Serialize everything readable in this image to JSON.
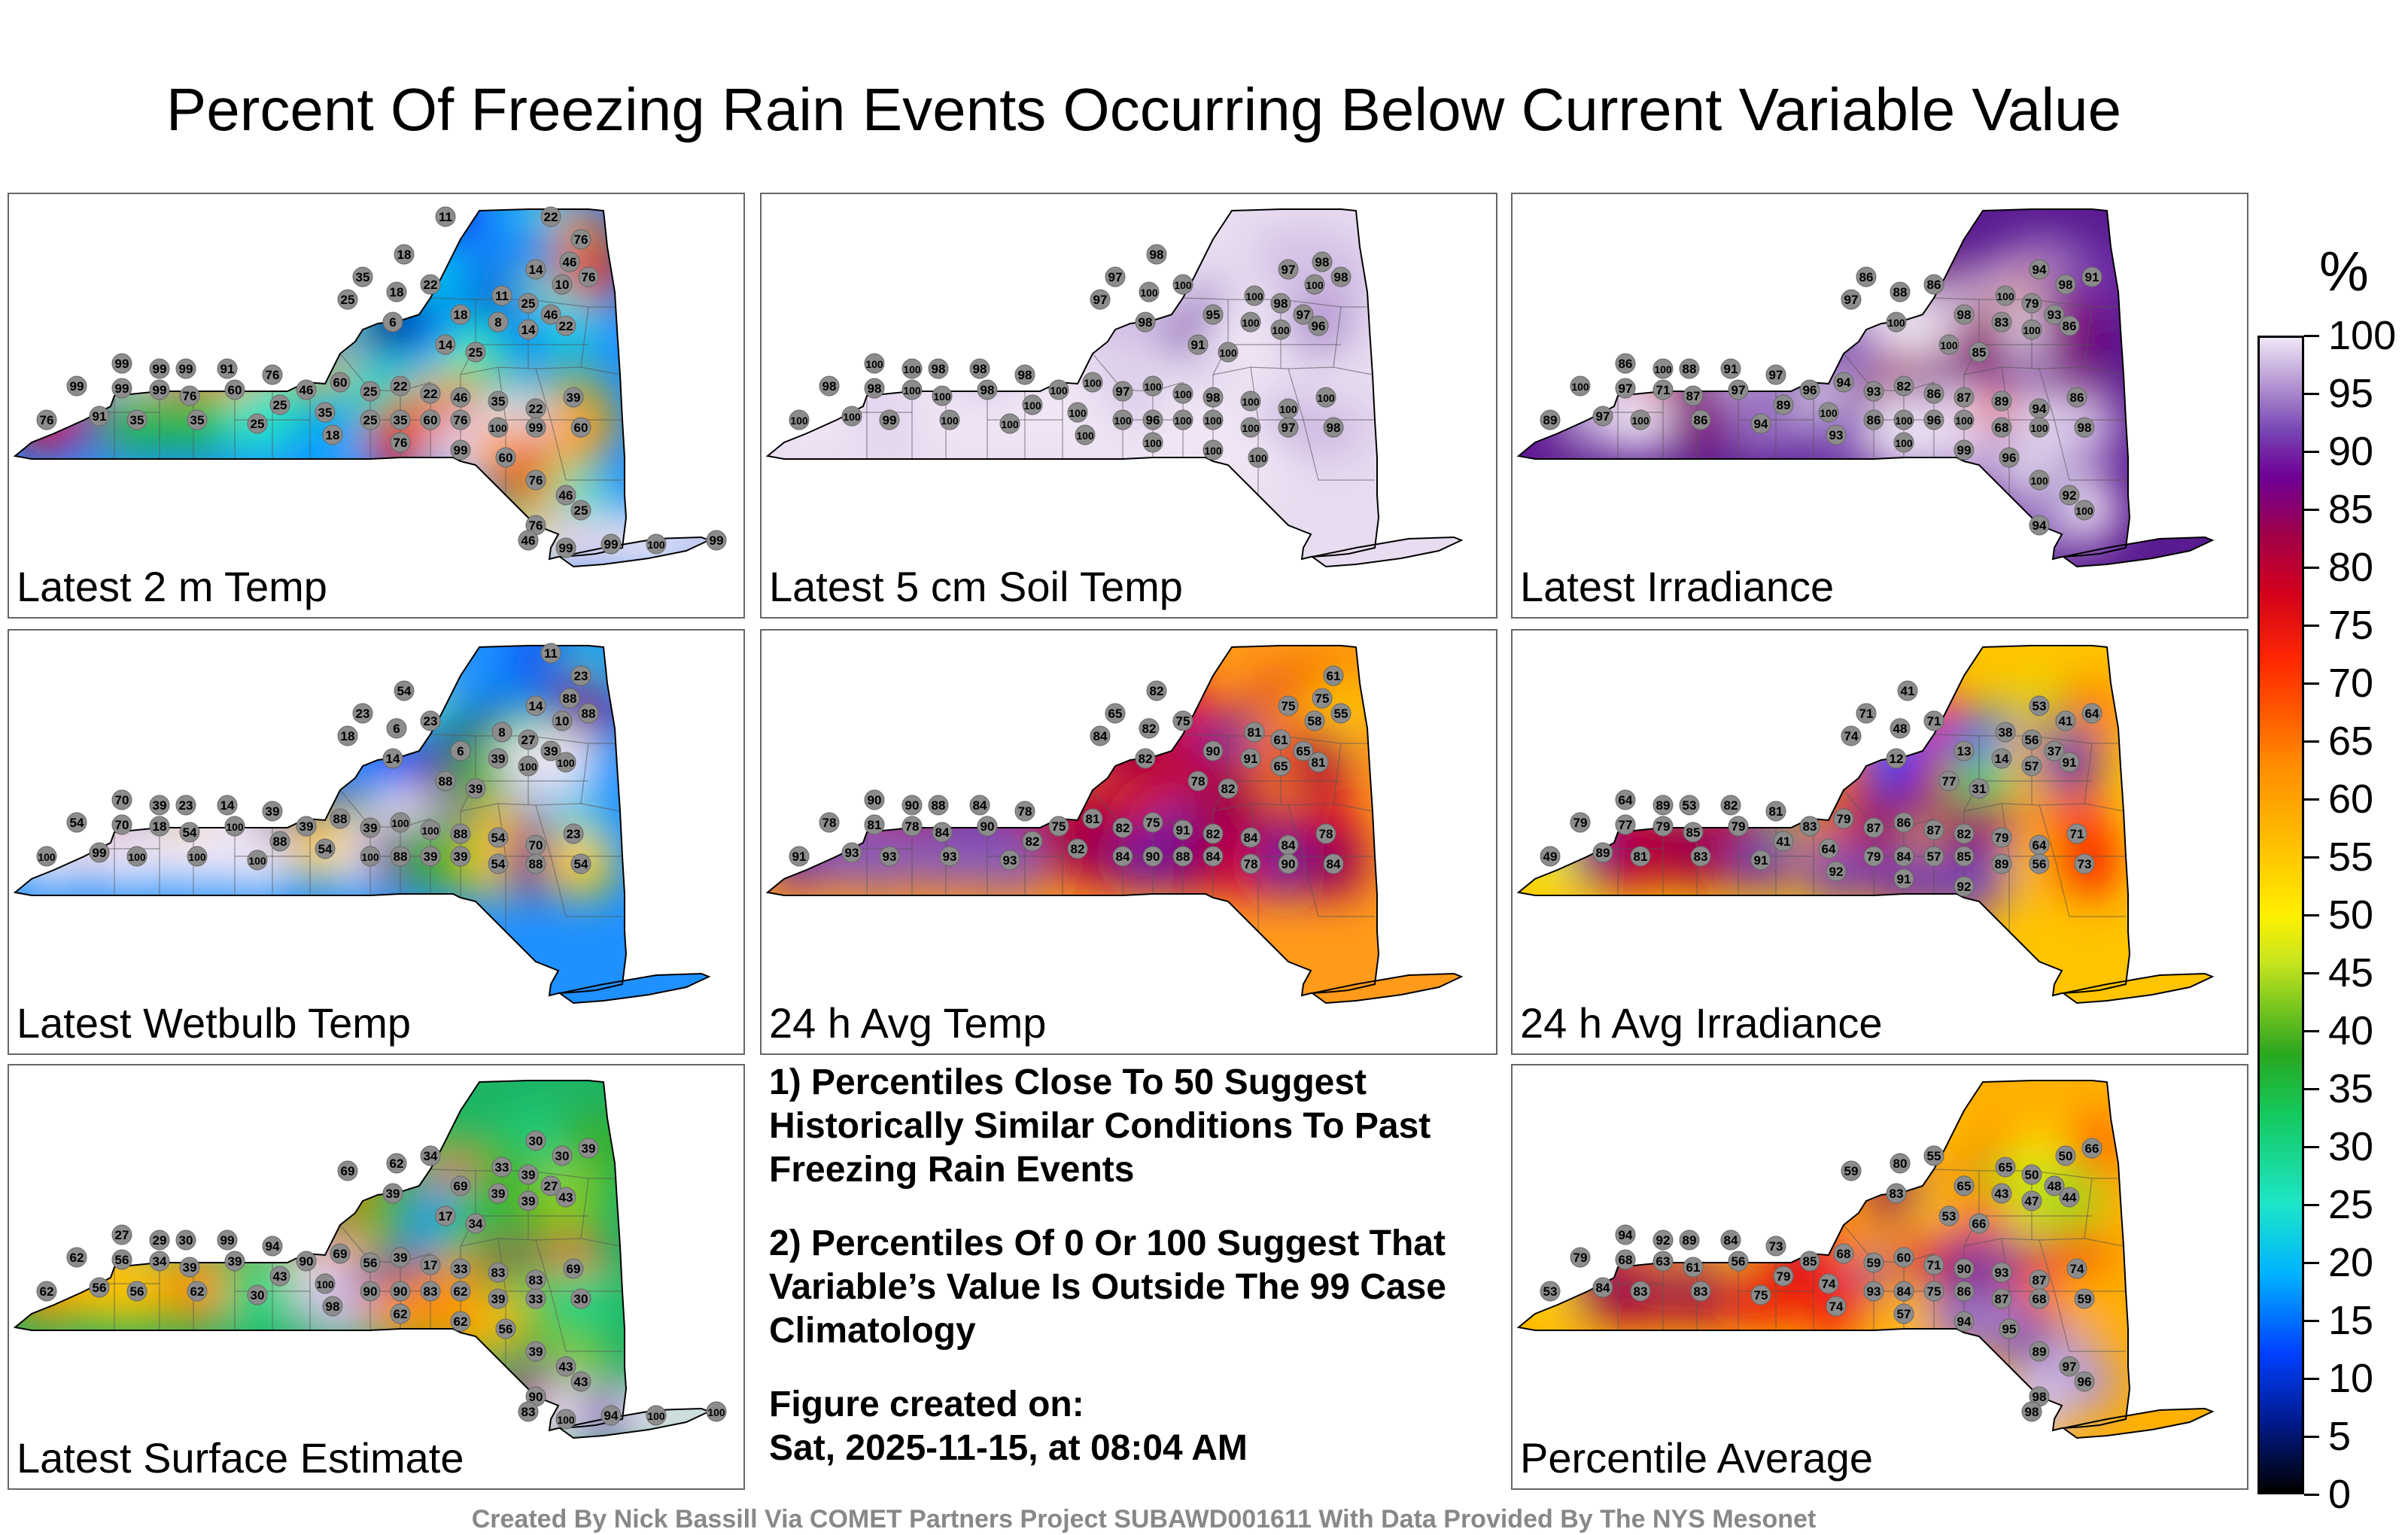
{
  "title": "Percent Of Freezing Rain Events Occurring Below Current Variable Value",
  "panels": [
    {
      "label": "Latest 2 m Temp",
      "palette": "temp2m",
      "stations": [
        11,
        22,
        76,
        46,
        18,
        35,
        14,
        10,
        76,
        25,
        18,
        22,
        11,
        25,
        46,
        6,
        18,
        8,
        14,
        22,
        14,
        25,
        99,
        99,
        99,
        91,
        76,
        46,
        60,
        25,
        22,
        22,
        46,
        35,
        22,
        39,
        99,
        99,
        99,
        76,
        60,
        25,
        35,
        25,
        35,
        60,
        76,
        100,
        99,
        60,
        76,
        91,
        35,
        35,
        25,
        18,
        76,
        99,
        60,
        76,
        46,
        25,
        76,
        46,
        99,
        99,
        100,
        99
      ]
    },
    {
      "label": "Latest 5 cm Soil Temp",
      "palette": "soil",
      "stations": [
        98,
        98,
        97,
        97,
        100,
        98,
        97,
        100,
        100,
        100,
        98,
        97,
        98,
        95,
        100,
        100,
        96,
        91,
        100,
        100,
        100,
        98,
        98,
        98,
        100,
        100,
        97,
        100,
        100,
        98,
        100,
        100,
        100,
        98,
        98,
        100,
        100,
        98,
        100,
        100,
        100,
        96,
        100,
        100,
        100,
        97,
        98,
        100,
        100,
        99,
        100,
        100,
        100,
        100,
        100,
        100
      ]
    },
    {
      "label": "Latest Irradiance",
      "palette": "irr",
      "stations": [
        86,
        94,
        98,
        91,
        97,
        88,
        86,
        100,
        79,
        93,
        100,
        98,
        83,
        100,
        86,
        100,
        85,
        86,
        100,
        88,
        91,
        97,
        96,
        94,
        93,
        82,
        86,
        87,
        89,
        94,
        86,
        100,
        97,
        71,
        87,
        97,
        89,
        100,
        86,
        100,
        96,
        100,
        68,
        100,
        98,
        89,
        97,
        100,
        86,
        94,
        93,
        100,
        99,
        96,
        100,
        92,
        100,
        94
      ]
    },
    {
      "label": "Latest Wetbulb Temp",
      "palette": "temp2m",
      "stations": [
        11,
        23,
        88,
        54,
        23,
        14,
        10,
        88,
        18,
        6,
        23,
        8,
        27,
        39,
        14,
        6,
        39,
        100,
        100,
        88,
        39,
        70,
        39,
        23,
        14,
        39,
        39,
        88,
        39,
        100,
        100,
        88,
        54,
        70,
        23,
        54,
        70,
        18,
        54,
        100,
        88,
        54,
        100,
        88,
        39,
        39,
        54,
        88,
        54,
        100,
        99,
        100,
        100,
        100
      ]
    },
    {
      "label": "24 h Avg Temp",
      "palette": "avgtemp",
      "stations": [
        61,
        75,
        82,
        65,
        75,
        58,
        55,
        84,
        82,
        75,
        81,
        61,
        65,
        82,
        90,
        91,
        65,
        81,
        78,
        82,
        90,
        90,
        88,
        84,
        78,
        75,
        81,
        82,
        75,
        91,
        82,
        84,
        84,
        78,
        78,
        81,
        78,
        84,
        90,
        82,
        82,
        84,
        90,
        88,
        84,
        78,
        90,
        84,
        91,
        93,
        93,
        93,
        93
      ]
    },
    {
      "label": "24 h Avg Irradiance",
      "palette": "avgirr",
      "stations": [
        41,
        71,
        53,
        41,
        64,
        74,
        48,
        71,
        38,
        56,
        37,
        12,
        13,
        14,
        57,
        91,
        77,
        31,
        64,
        89,
        53,
        82,
        81,
        83,
        79,
        87,
        86,
        87,
        82,
        79,
        64,
        71,
        79,
        77,
        79,
        85,
        79,
        41,
        64,
        79,
        84,
        57,
        85,
        89,
        56,
        73,
        49,
        89,
        81,
        83,
        91,
        92,
        91,
        92
      ]
    }
  ],
  "panel_bottom": {
    "label": "Latest Surface Estimate",
    "stations": [
      30,
      30,
      39,
      69,
      62,
      34,
      33,
      39,
      27,
      39,
      69,
      39,
      39,
      43,
      17,
      34,
      27,
      29,
      30,
      99,
      94,
      90,
      69,
      56,
      39,
      17,
      33,
      83,
      83,
      69,
      62,
      56,
      34,
      39,
      39,
      43,
      100,
      90,
      90,
      83,
      62,
      39,
      33,
      30,
      62,
      56,
      56,
      62,
      30,
      98,
      62,
      62,
      56,
      39,
      43,
      43,
      90,
      83,
      100,
      94,
      100,
      100
    ]
  },
  "panel_avg": {
    "label": "Percentile Average",
    "stations": [
      50,
      66,
      59,
      80,
      55,
      65,
      50,
      48,
      83,
      65,
      43,
      47,
      44,
      53,
      66,
      94,
      92,
      89,
      84,
      73,
      85,
      68,
      59,
      60,
      71,
      90,
      93,
      87,
      74,
      79,
      68,
      63,
      61,
      56,
      79,
      74,
      93,
      84,
      75,
      86,
      87,
      68,
      59,
      53,
      84,
      83,
      83,
      75,
      74,
      57,
      94,
      95,
      89,
      97,
      96,
      98,
      98
    ]
  },
  "notes": {
    "note1": "1) Percentiles Close To 50 Suggest Historically Similar Conditions To Past Freezing Rain Events",
    "note2": "2) Percentiles Of 0 Or 100 Suggest That Variable’s Value Is Outside The 99 Case Climatology",
    "created_label": "Figure created on:",
    "created_date": "Sat, 2025-11-15, at 08:04 AM"
  },
  "colorbar": {
    "unit": "%",
    "ticks": [
      100,
      95,
      90,
      85,
      80,
      75,
      70,
      65,
      60,
      55,
      50,
      45,
      40,
      35,
      30,
      25,
      20,
      15,
      10,
      5,
      0
    ]
  },
  "credit": "Created By Nick Bassill Via COMET Partners Project SUBAWD001611 With Data Provided By The NYS Mesonet"
}
